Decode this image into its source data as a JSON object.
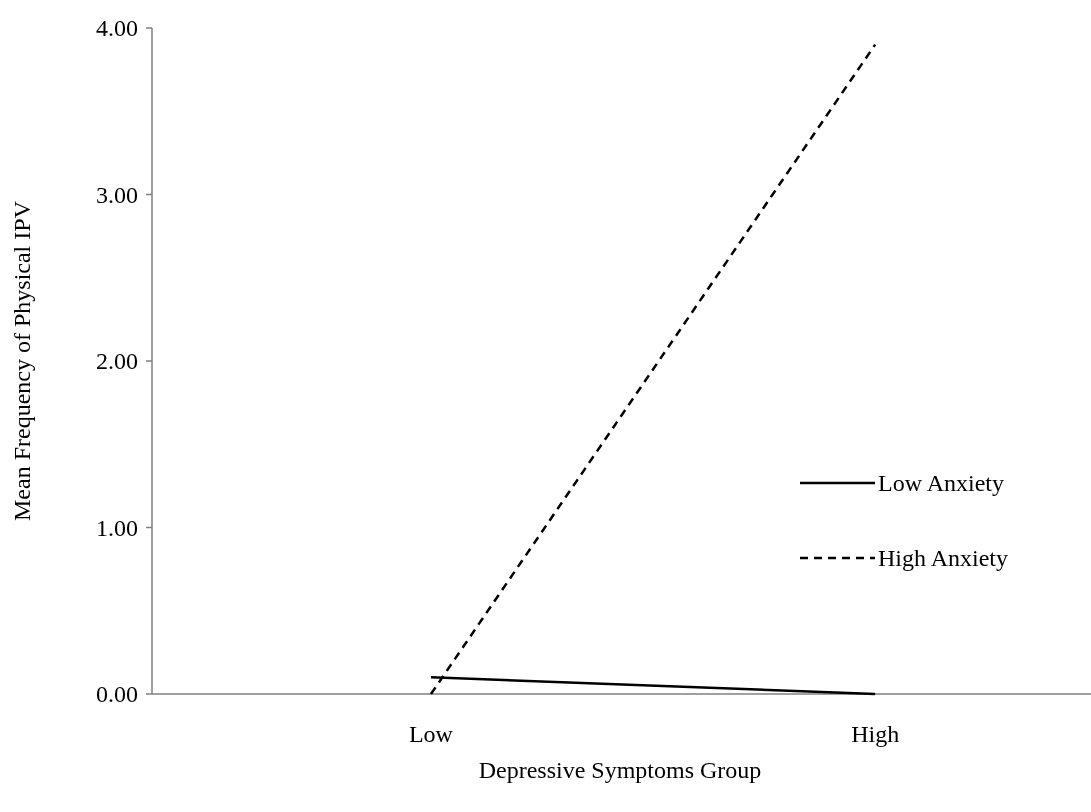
{
  "chart_data": {
    "type": "line",
    "xlabel": "Depressive Symptoms Group",
    "ylabel": "Mean Frequency of  Physical IPV",
    "categories": [
      "Low",
      "High"
    ],
    "ylim": [
      0,
      4
    ],
    "yticks": [
      {
        "value": 0,
        "label": "0.00"
      },
      {
        "value": 1,
        "label": "1.00"
      },
      {
        "value": 2,
        "label": "2.00"
      },
      {
        "value": 3,
        "label": "3.00"
      },
      {
        "value": 4,
        "label": "4.00"
      }
    ],
    "grid": false,
    "legend": "right",
    "marker": "none",
    "series": [
      {
        "name": "Low Anxiety",
        "color": "#000000",
        "line_style": "solid",
        "values": [
          0.1,
          0
        ]
      },
      {
        "name": "High Anxiety",
        "color": "#000000",
        "line_style": "dashed",
        "values": [
          0,
          3.9
        ]
      }
    ]
  }
}
